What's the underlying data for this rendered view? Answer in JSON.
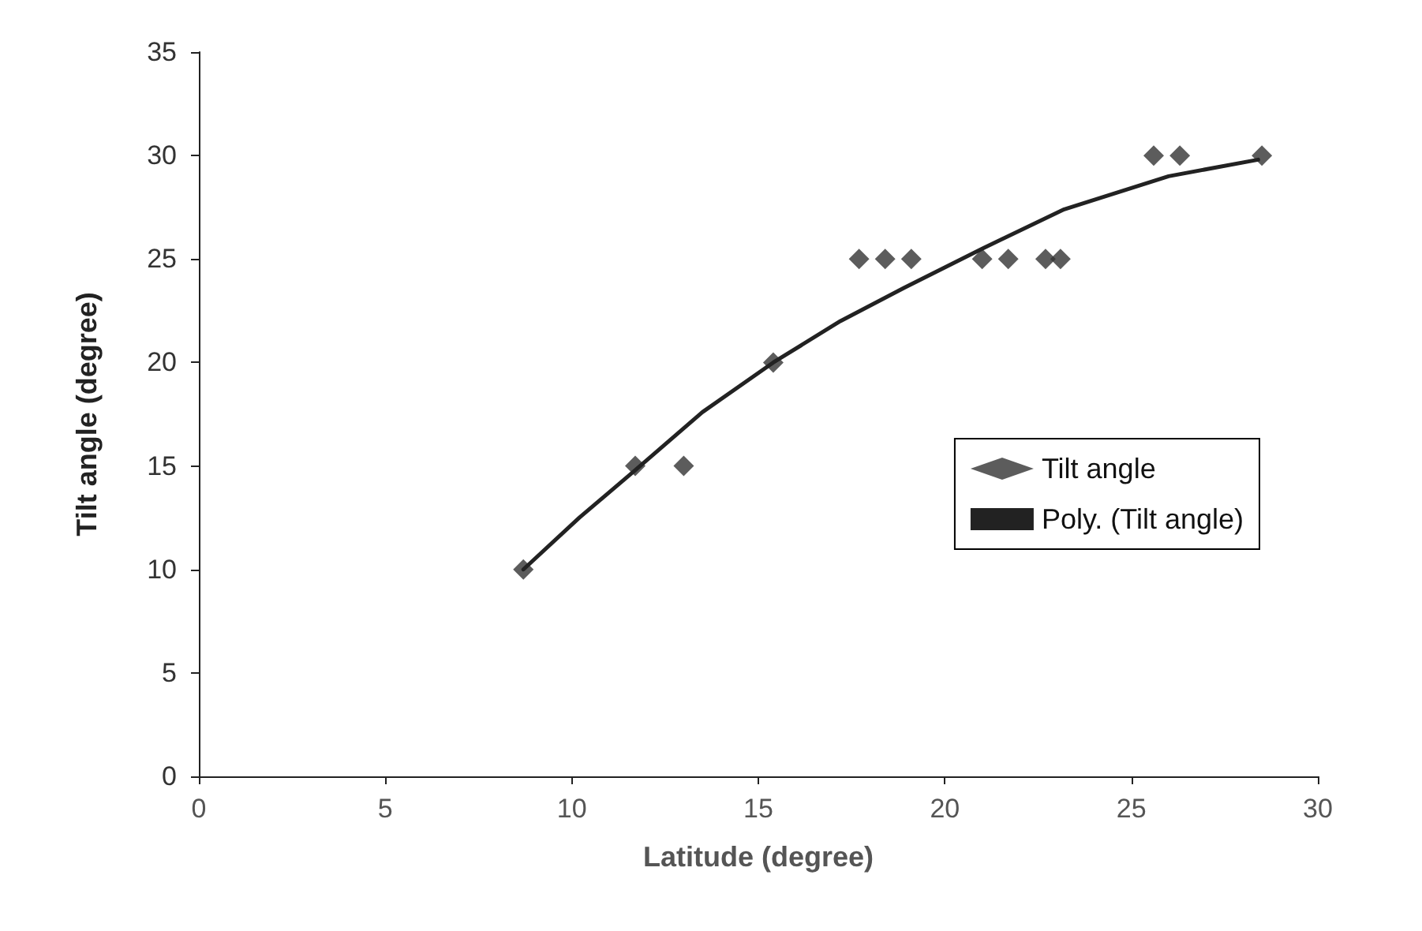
{
  "chart_data": {
    "type": "scatter",
    "xlabel": "Latitude (degree)",
    "ylabel": "Tilt angle (degree)",
    "xlim": [
      0,
      30
    ],
    "xticks": [
      0,
      5,
      10,
      15,
      20,
      25,
      30
    ],
    "ylim": [
      0,
      35
    ],
    "yticks": [
      0,
      5,
      10,
      15,
      20,
      25,
      30,
      35
    ],
    "grid": false,
    "legend": "right",
    "marker": "diamond",
    "series": [
      {
        "name": "Tilt angle",
        "color": "#333333",
        "x": [
          8.7,
          11.7,
          13.0,
          15.4,
          17.7,
          18.4,
          19.1,
          21.0,
          21.7,
          22.7,
          23.1,
          25.6,
          26.3,
          28.5
        ],
        "values": [
          10,
          15,
          15,
          20,
          25,
          25,
          25,
          25,
          25,
          25,
          25,
          30,
          30,
          30
        ]
      },
      {
        "name": "Poly. (Tilt angle)",
        "type": "line",
        "marker": "none",
        "line_style": "solid",
        "color": "#222222",
        "x": [
          8.7,
          10.2,
          11.7,
          13.5,
          15.4,
          17.2,
          18.9,
          21.0,
          23.2,
          26.0,
          28.4
        ],
        "values": [
          10,
          12.5,
          14.8,
          17.6,
          20.0,
          22.0,
          23.6,
          25.5,
          27.4,
          29.0,
          29.8
        ]
      }
    ]
  }
}
